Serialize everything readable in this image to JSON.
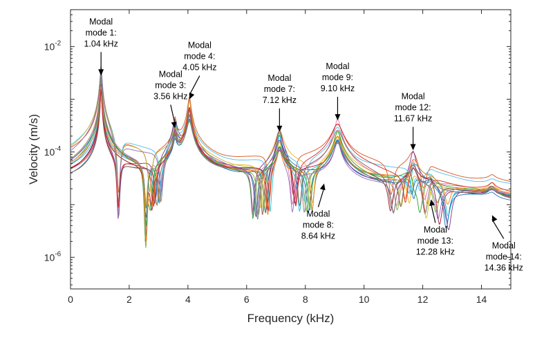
{
  "chart_data": {
    "type": "line",
    "title": "",
    "xlabel": "Frequency (kHz)",
    "ylabel": "Velocity (m/s)",
    "xlim": [
      0,
      15
    ],
    "ylim_log10": [
      -6.6,
      -1.3
    ],
    "y_scale": "log",
    "grid": false,
    "x_ticks": [
      {
        "value": 0,
        "label": "0"
      },
      {
        "value": 2,
        "label": "2"
      },
      {
        "value": 4,
        "label": "4"
      },
      {
        "value": 6,
        "label": "6"
      },
      {
        "value": 8,
        "label": "8"
      },
      {
        "value": 10,
        "label": "10"
      },
      {
        "value": 12,
        "label": "12"
      },
      {
        "value": 14,
        "label": "14"
      }
    ],
    "y_ticks": [
      {
        "exp": -6,
        "base": "10",
        "power": "-6"
      },
      {
        "exp": -4,
        "base": "10",
        "power": "-4"
      },
      {
        "exp": -2,
        "base": "10",
        "power": "-2"
      }
    ],
    "series_colors": [
      "#0072BD",
      "#D95319",
      "#EDB120",
      "#7E2F8E",
      "#77AC30",
      "#4DBEEE",
      "#A2142F",
      "#1f77b4",
      "#e377c2",
      "#bcbd22",
      "#17becf",
      "#8c564b",
      "#2ca02c",
      "#9467bd",
      "#ff7f0e",
      "#d62728",
      "#7f7f7f"
    ],
    "base_peaks": [
      {
        "f": 1.04,
        "amp": -2.3,
        "w": 0.022
      },
      {
        "f": 3.56,
        "amp": -3.45,
        "w": 0.05
      },
      {
        "f": 4.05,
        "amp": -2.95,
        "w": 0.06
      },
      {
        "f": 7.12,
        "amp": -3.6,
        "w": 0.08
      },
      {
        "f": 9.1,
        "amp": -3.4,
        "w": 0.12
      },
      {
        "f": 11.67,
        "amp": -4.0,
        "w": 0.1
      },
      {
        "f": 12.28,
        "amp": -4.8,
        "w": 0.1
      },
      {
        "f": 14.36,
        "amp": -5.0,
        "w": 0.12
      }
    ],
    "annotations": [
      {
        "lines": [
          "Modal",
          "mode 1:",
          "1.04 kHz"
        ],
        "f": 1.04,
        "target_exp": -2.55,
        "dir": "down"
      },
      {
        "lines": [
          "Modal",
          "mode 3:",
          "3.56 kHz"
        ],
        "f": 3.56,
        "target_exp": -3.55,
        "dir": "down",
        "offset_f": -0.15
      },
      {
        "lines": [
          "Modal",
          "mode 4:",
          "4.05 kHz"
        ],
        "f": 4.05,
        "target_exp": -3.0,
        "dir": "down",
        "offset_f": 0.35
      },
      {
        "lines": [
          "Modal",
          "mode 7:",
          "7.12 kHz"
        ],
        "f": 7.12,
        "target_exp": -3.62,
        "dir": "down"
      },
      {
        "lines": [
          "Modal",
          "mode 8:",
          "8.64 kHz"
        ],
        "f": 8.64,
        "target_exp": -4.6,
        "dir": "up",
        "offset_f": -0.2
      },
      {
        "lines": [
          "Modal",
          "mode 9:",
          "9.10 kHz"
        ],
        "f": 9.1,
        "target_exp": -3.4,
        "dir": "down"
      },
      {
        "lines": [
          "Modal",
          "mode 12:",
          "11.67 kHz"
        ],
        "f": 11.67,
        "target_exp": -3.97,
        "dir": "down"
      },
      {
        "lines": [
          "Modal",
          "mode 13:",
          "12.28 kHz"
        ],
        "f": 12.28,
        "target_exp": -4.9,
        "dir": "up",
        "offset_f": 0.15
      },
      {
        "lines": [
          "Modal",
          "mode 14:",
          "14.36 kHz"
        ],
        "f": 14.36,
        "target_exp": -5.2,
        "dir": "up",
        "offset_f": 0.4
      }
    ]
  }
}
